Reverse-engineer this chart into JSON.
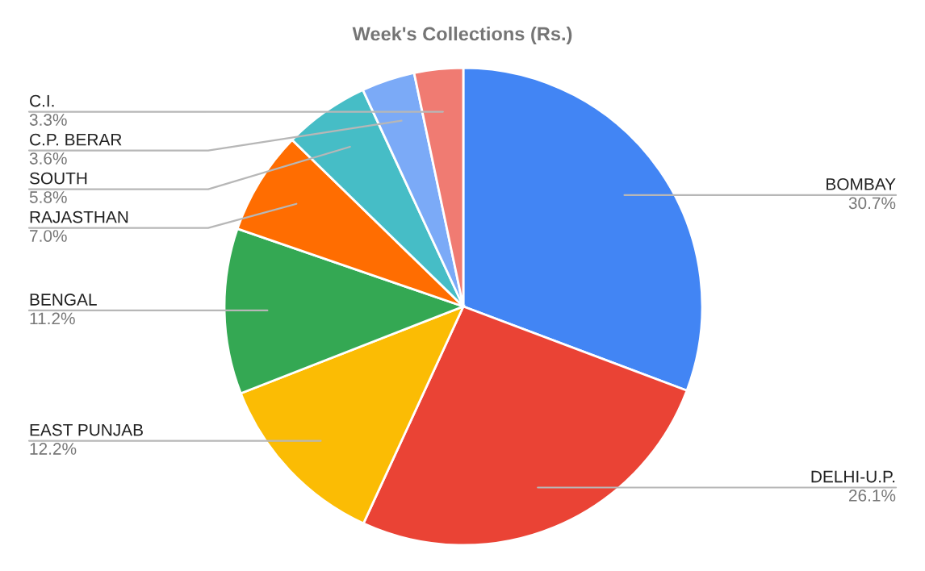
{
  "chart_data": {
    "type": "pie",
    "title": "Week's Collections (Rs.)",
    "categories": [
      "BOMBAY",
      "DELHI-U.P.",
      "EAST PUNJAB",
      "BENGAL",
      "RAJASTHAN",
      "SOUTH",
      "C.P. BERAR",
      "C.I."
    ],
    "values": [
      30.7,
      26.1,
      12.2,
      11.2,
      7.0,
      5.8,
      3.6,
      3.3
    ],
    "value_labels": [
      "30.7%",
      "26.1%",
      "12.2%",
      "11.2%",
      "7.0%",
      "5.8%",
      "3.6%",
      "3.3%"
    ],
    "colors": [
      "#4285f4",
      "#ea4335",
      "#fbbc04",
      "#34a853",
      "#ff6d01",
      "#46bdc6",
      "#7baaf7",
      "#f07b72"
    ],
    "legend": false
  }
}
